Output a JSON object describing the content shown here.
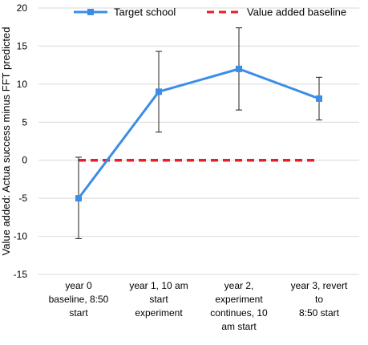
{
  "chart_data": {
    "type": "line",
    "categories": [
      [
        "year 0",
        "baseline, 8:50",
        "start"
      ],
      [
        "year 1, 10 am",
        "start",
        "experiment"
      ],
      [
        "year 2,",
        "experiment",
        "continues, 10",
        "am start"
      ],
      [
        "year 3, revert",
        "to",
        "8:50 start"
      ]
    ],
    "ylabel": "Value added: Actua success minus FFT predicted",
    "ylim": [
      -15,
      20
    ],
    "yticks": [
      -15,
      -10,
      -5,
      0,
      5,
      10,
      15,
      20
    ],
    "grid": true,
    "legend_position": "top",
    "series": [
      {
        "name": "Target school",
        "color": "#3b8de8",
        "style": "solid",
        "marker": "square",
        "values": [
          -5,
          9,
          12,
          8.1
        ],
        "error_low": [
          -10.3,
          3.7,
          6.6,
          5.3
        ],
        "error_high": [
          0.4,
          14.3,
          17.4,
          10.9
        ]
      },
      {
        "name": "Value added baseline",
        "color": "#ee1c25",
        "style": "dashed",
        "marker": "none",
        "values": [
          0,
          0,
          0,
          0
        ]
      }
    ]
  }
}
